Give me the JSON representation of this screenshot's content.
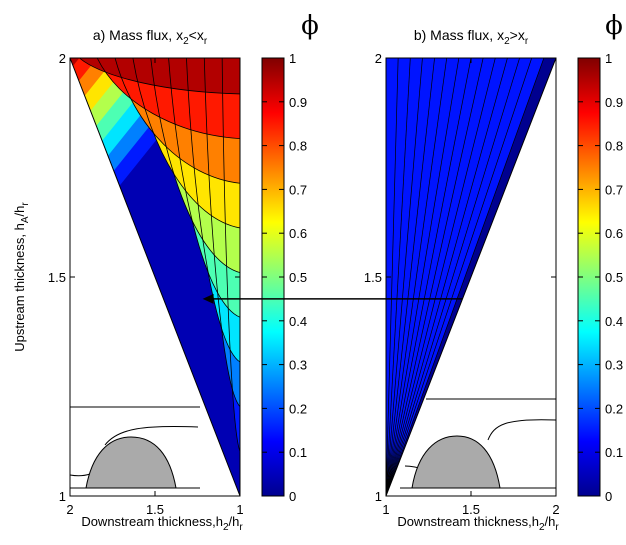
{
  "chart_data": [
    {
      "panel": "a",
      "type": "filled-contour",
      "title": "a) Mass flux, x2<xr",
      "title_parts": {
        "main": "a) Mass flux, x",
        "sub1": "2",
        "rel": "<x",
        "sub2": "r"
      },
      "xlabel_parts": {
        "main": "Downstream thickness,h",
        "sub1": "2",
        "mid": "/h",
        "sub2": "r"
      },
      "ylabel_parts": {
        "main": "Upstream thickness, h",
        "sub1": "A",
        "mid": "/h",
        "sub2": "r"
      },
      "xlim": [
        2,
        1
      ],
      "ylim": [
        1,
        2
      ],
      "x_reversed": true,
      "x_ticks": [
        "2",
        "1.5",
        "1"
      ],
      "y_ticks": [
        "1",
        "1.5",
        "2"
      ],
      "z_range": [
        0,
        1
      ],
      "contour_levels": [
        0,
        0.1,
        0.2,
        0.3,
        0.4,
        0.5,
        0.6,
        0.7,
        0.8,
        0.9,
        1.0
      ],
      "domain_boundary": "diagonal from (h2=2, hA=2) to (h2=1, hA=1); data region lies to the right of it (h2 < hA)"
    },
    {
      "panel": "b",
      "type": "filled-contour",
      "title": "b) Mass flux, x2>xr",
      "title_parts": {
        "main": "b) Mass flux, x",
        "sub1": "2",
        "rel": ">x",
        "sub2": "r"
      },
      "xlabel_parts": {
        "main": "Downstream thickness,h",
        "sub1": "2",
        "mid": "/h",
        "sub2": "r"
      },
      "xlim": [
        1,
        2
      ],
      "ylim": [
        1,
        2
      ],
      "x_reversed": false,
      "x_ticks": [
        "1",
        "1.5",
        "2"
      ],
      "y_ticks": [
        "1",
        "1.5",
        "2"
      ],
      "z_range": [
        0,
        1
      ],
      "contour_levels": [
        0.01,
        0.02,
        0.03,
        0.04,
        0.05,
        0.06,
        0.07,
        0.08,
        0.09,
        0.1,
        0.11,
        0.12,
        0.13
      ],
      "domain_boundary": "diagonal from (h2=1, hA=1) to (h2=2, hA=2); data region lies to the left of it (h2 < hA)"
    }
  ],
  "colorbar": {
    "label": "ϕ",
    "ticks": [
      "0",
      "0.1",
      "0.2",
      "0.3",
      "0.4",
      "0.5",
      "0.6",
      "0.7",
      "0.8",
      "0.9",
      "1"
    ],
    "range": [
      0,
      1
    ],
    "colormap": "jet"
  },
  "arrow": {
    "from_panel": "b",
    "to_panel": "a",
    "hA": 1.45,
    "from_h2": 1.45,
    "to_h2": 1.22
  },
  "colors": {
    "axis": "#000000",
    "contour_line": "#000000",
    "inset_fill": "#aaaaaa"
  },
  "inset": {
    "shape": "obstacle (semi-ellipse) with interface lines",
    "present_in": [
      "a",
      "b"
    ]
  }
}
